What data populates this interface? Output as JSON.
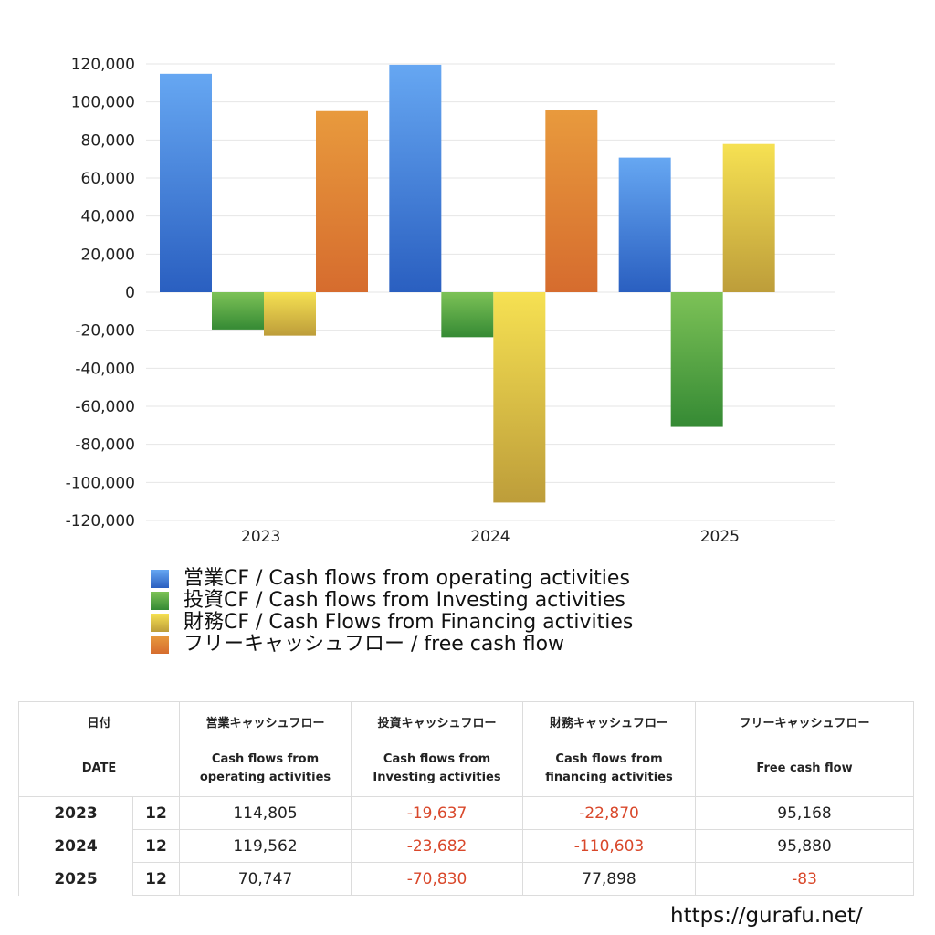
{
  "chart_data": {
    "type": "bar",
    "categories": [
      "2023",
      "2024",
      "2025"
    ],
    "series": [
      {
        "name": "営業CF / Cash flows from operating activities",
        "values": [
          114805,
          119562,
          70747
        ],
        "color_top": "#66a7f2",
        "color_bottom": "#2a5fc0"
      },
      {
        "name": "投資CF / Cash flows from Investing activities",
        "values": [
          -19637,
          -23682,
          -70830
        ],
        "color_top": "#7dc257",
        "color_bottom": "#358a34"
      },
      {
        "name": "財務CF / Cash Flows from Financing activities",
        "values": [
          -22870,
          -110603,
          77898
        ],
        "color_top": "#f6e152",
        "color_bottom": "#bd9d3a"
      },
      {
        "name": "フリーキャッシュフロー / free cash flow",
        "values": [
          95168,
          95880,
          null
        ],
        "color_top": "#e89a3d",
        "color_bottom": "#d66c2e"
      }
    ],
    "ylim": [
      -120000,
      120000
    ],
    "yticks": [
      120000,
      100000,
      80000,
      60000,
      40000,
      20000,
      0,
      -20000,
      -40000,
      -60000,
      -80000,
      -100000,
      -120000
    ],
    "ytick_labels": [
      "120,000",
      "100,000",
      "80,000",
      "60,000",
      "40,000",
      "20,000",
      "0",
      "-20,000",
      "-40,000",
      "-60,000",
      "-80,000",
      "-100,000",
      "-120,000"
    ],
    "grid": true,
    "legend_position": "bottom-left"
  },
  "table": {
    "header_jp": {
      "date": "日付",
      "operating": "営業キャッシュフロー",
      "investing": "投資キャッシュフロー",
      "financing": "財務キャッシュフロー",
      "free": "フリーキャッシュフロー"
    },
    "header_en": {
      "date": "DATE",
      "operating_1": "Cash flows from",
      "operating_2": "operating activities",
      "investing_1": "Cash flows from",
      "investing_2": "Investing activities",
      "financing_1": "Cash flows from",
      "financing_2": "financing activities",
      "free": "Free cash flow"
    },
    "rows": [
      {
        "year": "2023",
        "month": "12",
        "operating": "114,805",
        "investing": "-19,637",
        "financing": "-22,870",
        "free": "95,168"
      },
      {
        "year": "2024",
        "month": "12",
        "operating": "119,562",
        "investing": "-23,682",
        "financing": "-110,603",
        "free": "95,880"
      },
      {
        "year": "2025",
        "month": "12",
        "operating": "70,747",
        "investing": "-70,830",
        "financing": "77,898",
        "free": "-83"
      }
    ]
  },
  "footer": {
    "url": "https://gurafu.net/"
  }
}
